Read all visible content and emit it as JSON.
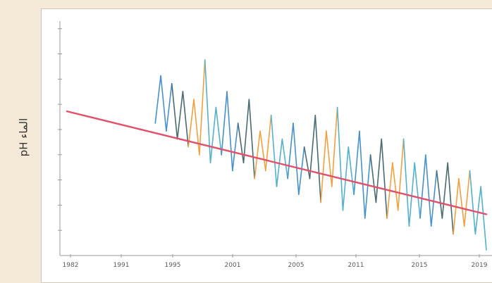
{
  "chart_data": {
    "type": "line",
    "title": "",
    "ylabel": "pH الماء",
    "xlabel": "",
    "x_tick_labels": [
      "1982",
      "1991",
      "1995",
      "2001",
      "2005",
      "2011",
      "2015",
      "2019"
    ],
    "y_tick_labels": [
      "",
      "",
      "",
      "",
      "",
      "",
      "",
      "",
      ""
    ],
    "xlim": [
      1982,
      2020
    ],
    "ylim": [
      7.94,
      8.22
    ],
    "grid": false,
    "series": [
      {
        "kind": "measured",
        "color_segments": [
          "#4a90c8",
          "#4a6a70",
          "#f0a040",
          "#55b0c8"
        ],
        "x": [
          1990.0,
          1990.5,
          1991.0,
          1991.5,
          1992.0,
          1992.5,
          1993.0,
          1993.5,
          1994.0,
          1994.5,
          1995.0,
          1995.5,
          1996.0,
          1996.5,
          1997.0,
          1997.5,
          1998.0,
          1998.5,
          1999.0,
          1999.5,
          2000.0,
          2000.5,
          2001.0,
          2001.5,
          2002.0,
          2002.5,
          2003.0,
          2003.5,
          2004.0,
          2004.5,
          2005.0,
          2005.5,
          2006.0,
          2006.5,
          2007.0,
          2007.5,
          2008.0,
          2008.5,
          2009.0,
          2009.5,
          2010.0,
          2010.5,
          2011.0,
          2011.5,
          2012.0,
          2012.5,
          2013.0,
          2013.5,
          2014.0,
          2014.5,
          2015.0,
          2015.5,
          2016.0,
          2016.5,
          2017.0,
          2017.5,
          2018.0,
          2018.5,
          2019.0,
          2019.5,
          2020.0
        ],
        "values": [
          8.1,
          8.16,
          8.09,
          8.15,
          8.08,
          8.14,
          8.07,
          8.13,
          8.06,
          8.18,
          8.05,
          8.12,
          8.06,
          8.14,
          8.04,
          8.1,
          8.05,
          8.13,
          8.03,
          8.09,
          8.04,
          8.11,
          8.02,
          8.08,
          8.03,
          8.1,
          8.01,
          8.07,
          8.03,
          8.11,
          8.0,
          8.09,
          8.02,
          8.12,
          7.99,
          8.07,
          8.01,
          8.09,
          7.98,
          8.06,
          8.0,
          8.08,
          7.98,
          8.05,
          7.99,
          8.08,
          7.97,
          8.05,
          7.98,
          8.06,
          7.97,
          8.04,
          7.98,
          8.05,
          7.96,
          8.03,
          7.97,
          8.04,
          7.96,
          8.02,
          7.94
        ]
      },
      {
        "kind": "trend",
        "color": "#e0506a",
        "x": [
          1982,
          2020
        ],
        "values": [
          8.115,
          7.985
        ]
      }
    ]
  }
}
